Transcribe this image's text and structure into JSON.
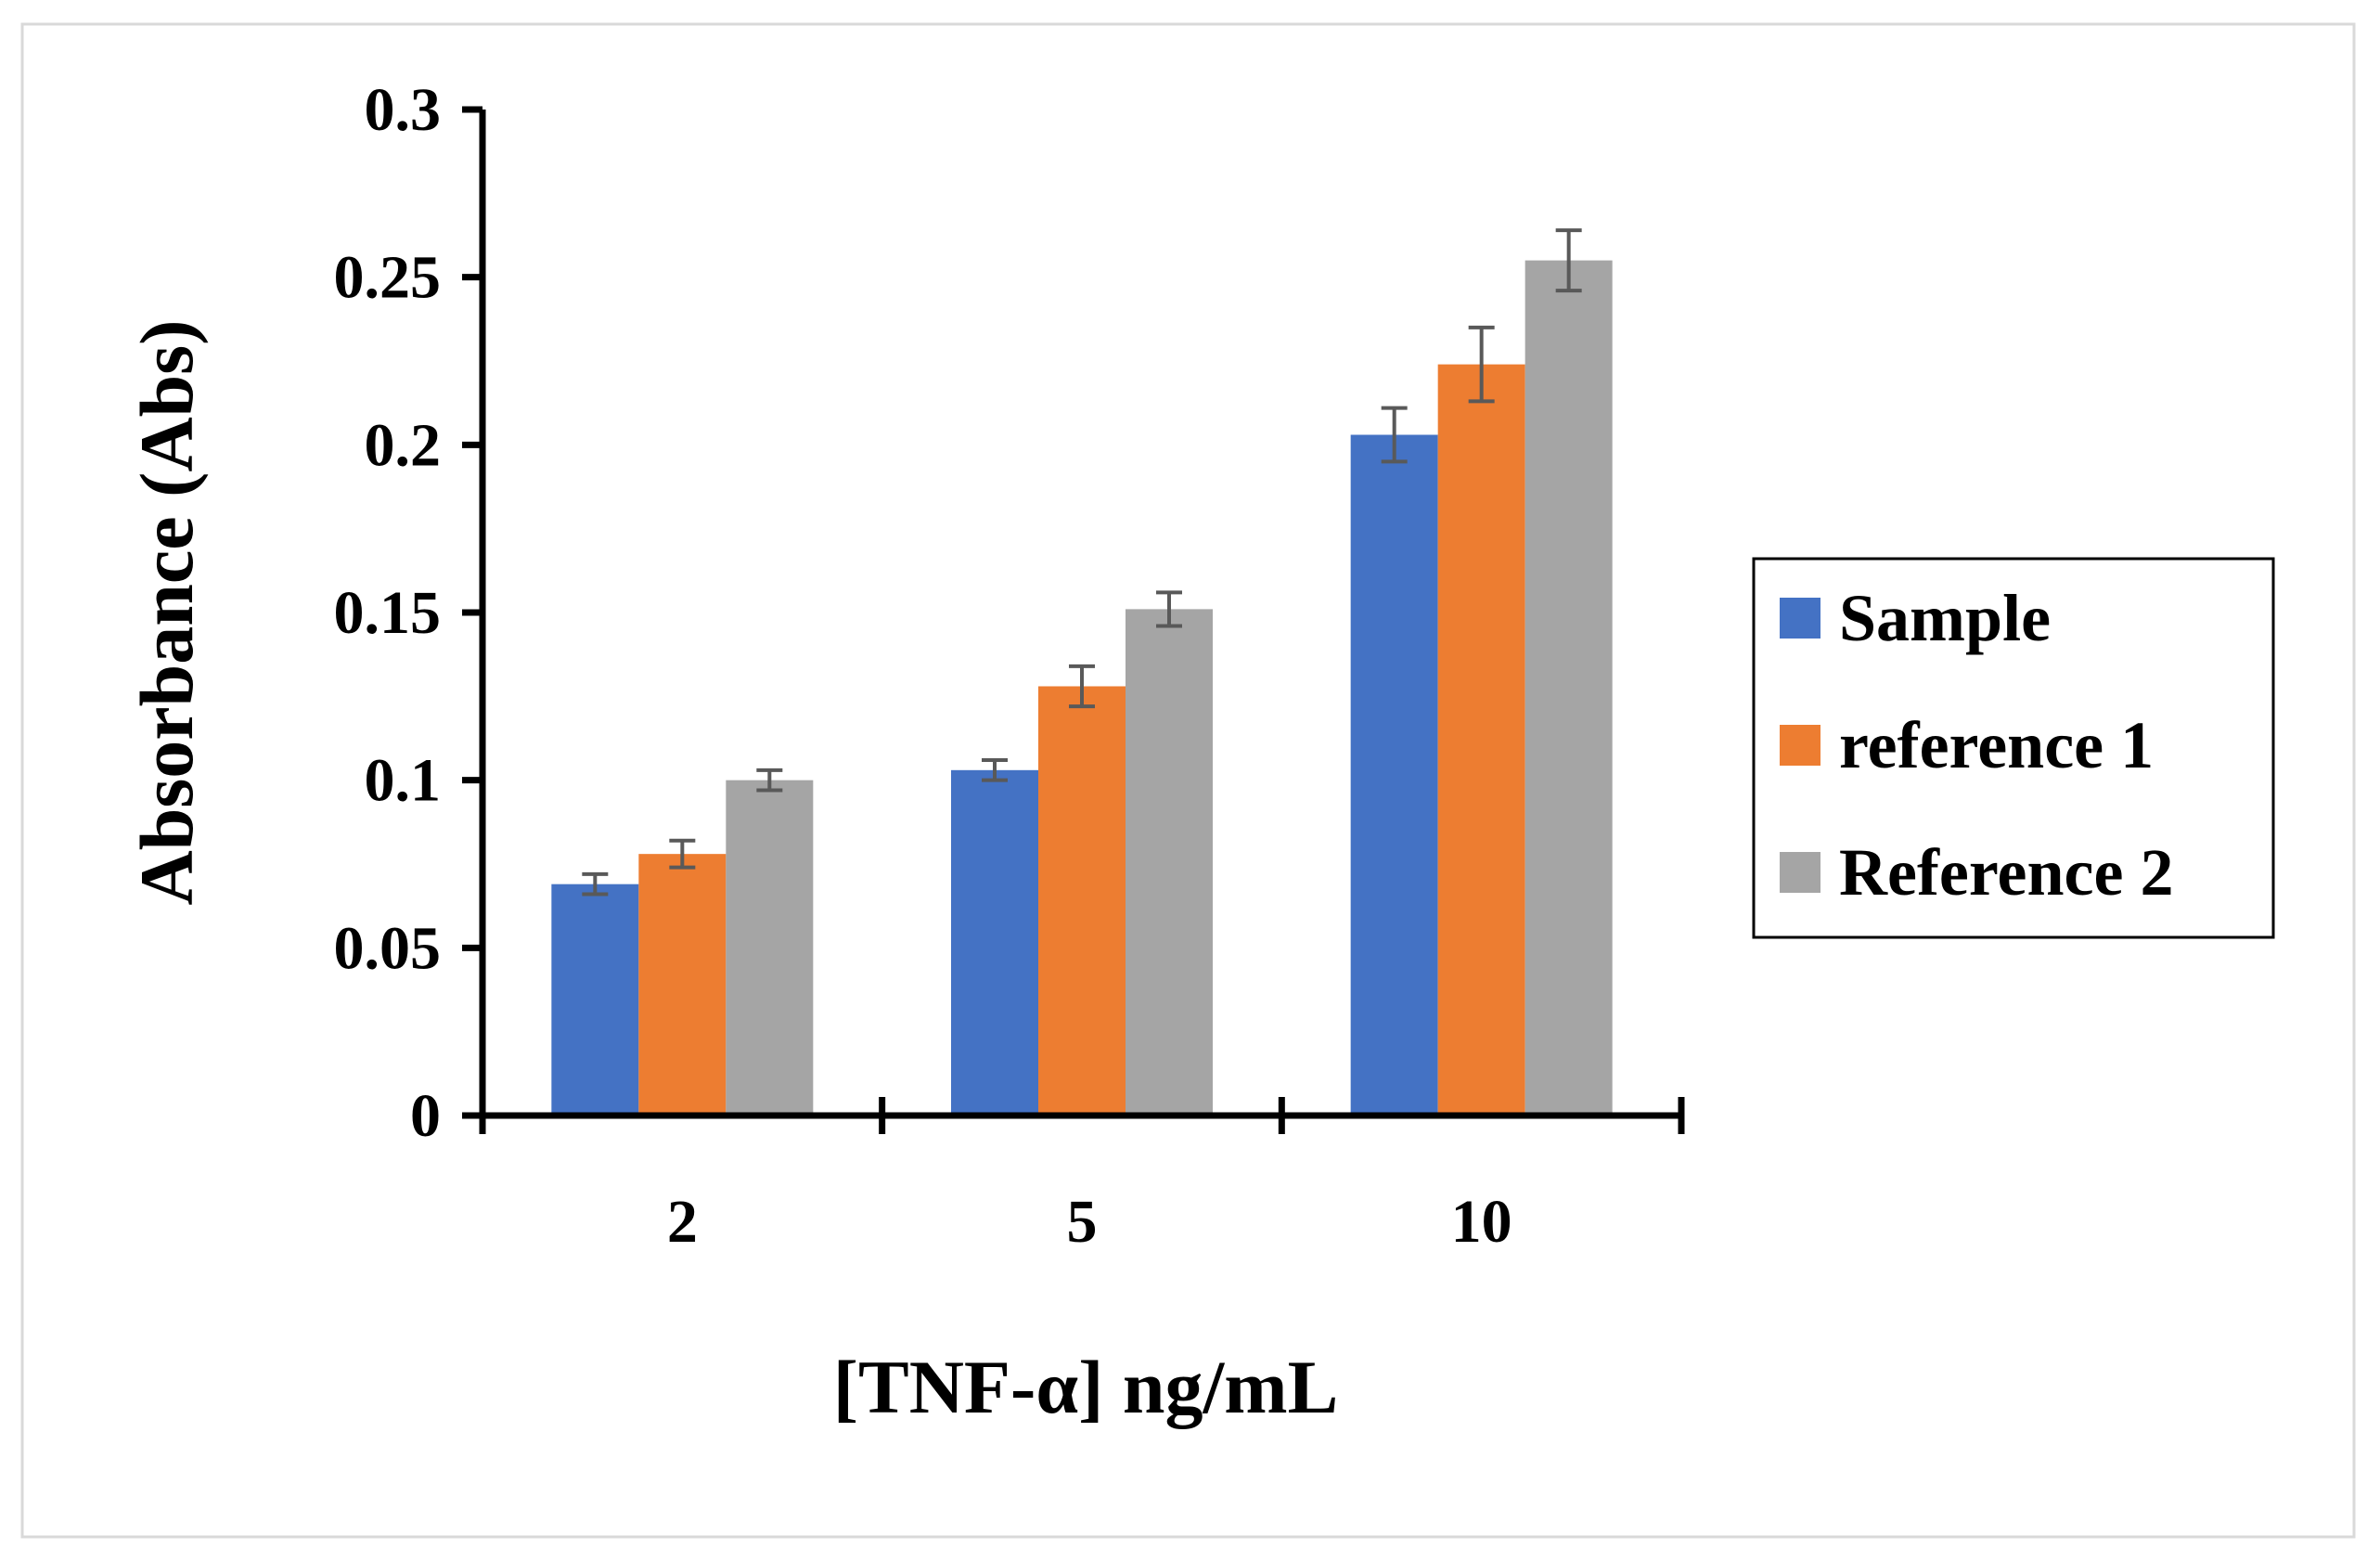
{
  "chart_data": {
    "type": "bar",
    "title": "",
    "xlabel": "[TNF-α] ng/mL",
    "ylabel": "Absorbance (Abs)",
    "categories": [
      "2",
      "5",
      "10"
    ],
    "ylim": [
      0,
      0.3
    ],
    "yticks": [
      0,
      0.05,
      0.1,
      0.15,
      0.2,
      0.25,
      0.3
    ],
    "ytick_labels": [
      "0",
      "0.05",
      "0.1",
      "0.15",
      "0.2",
      "0.25",
      "0.3"
    ],
    "grid": false,
    "legend_position": "right",
    "series": [
      {
        "name": "Sample",
        "color": "#4472C4",
        "values": [
          0.069,
          0.103,
          0.203
        ],
        "errors": [
          0.003,
          0.003,
          0.008
        ]
      },
      {
        "name": "reference 1",
        "color": "#ED7D31",
        "values": [
          0.078,
          0.128,
          0.224
        ],
        "errors": [
          0.004,
          0.006,
          0.011
        ]
      },
      {
        "name": "Reference 2",
        "color": "#A5A5A5",
        "values": [
          0.1,
          0.151,
          0.255
        ],
        "errors": [
          0.003,
          0.005,
          0.009
        ]
      }
    ]
  }
}
